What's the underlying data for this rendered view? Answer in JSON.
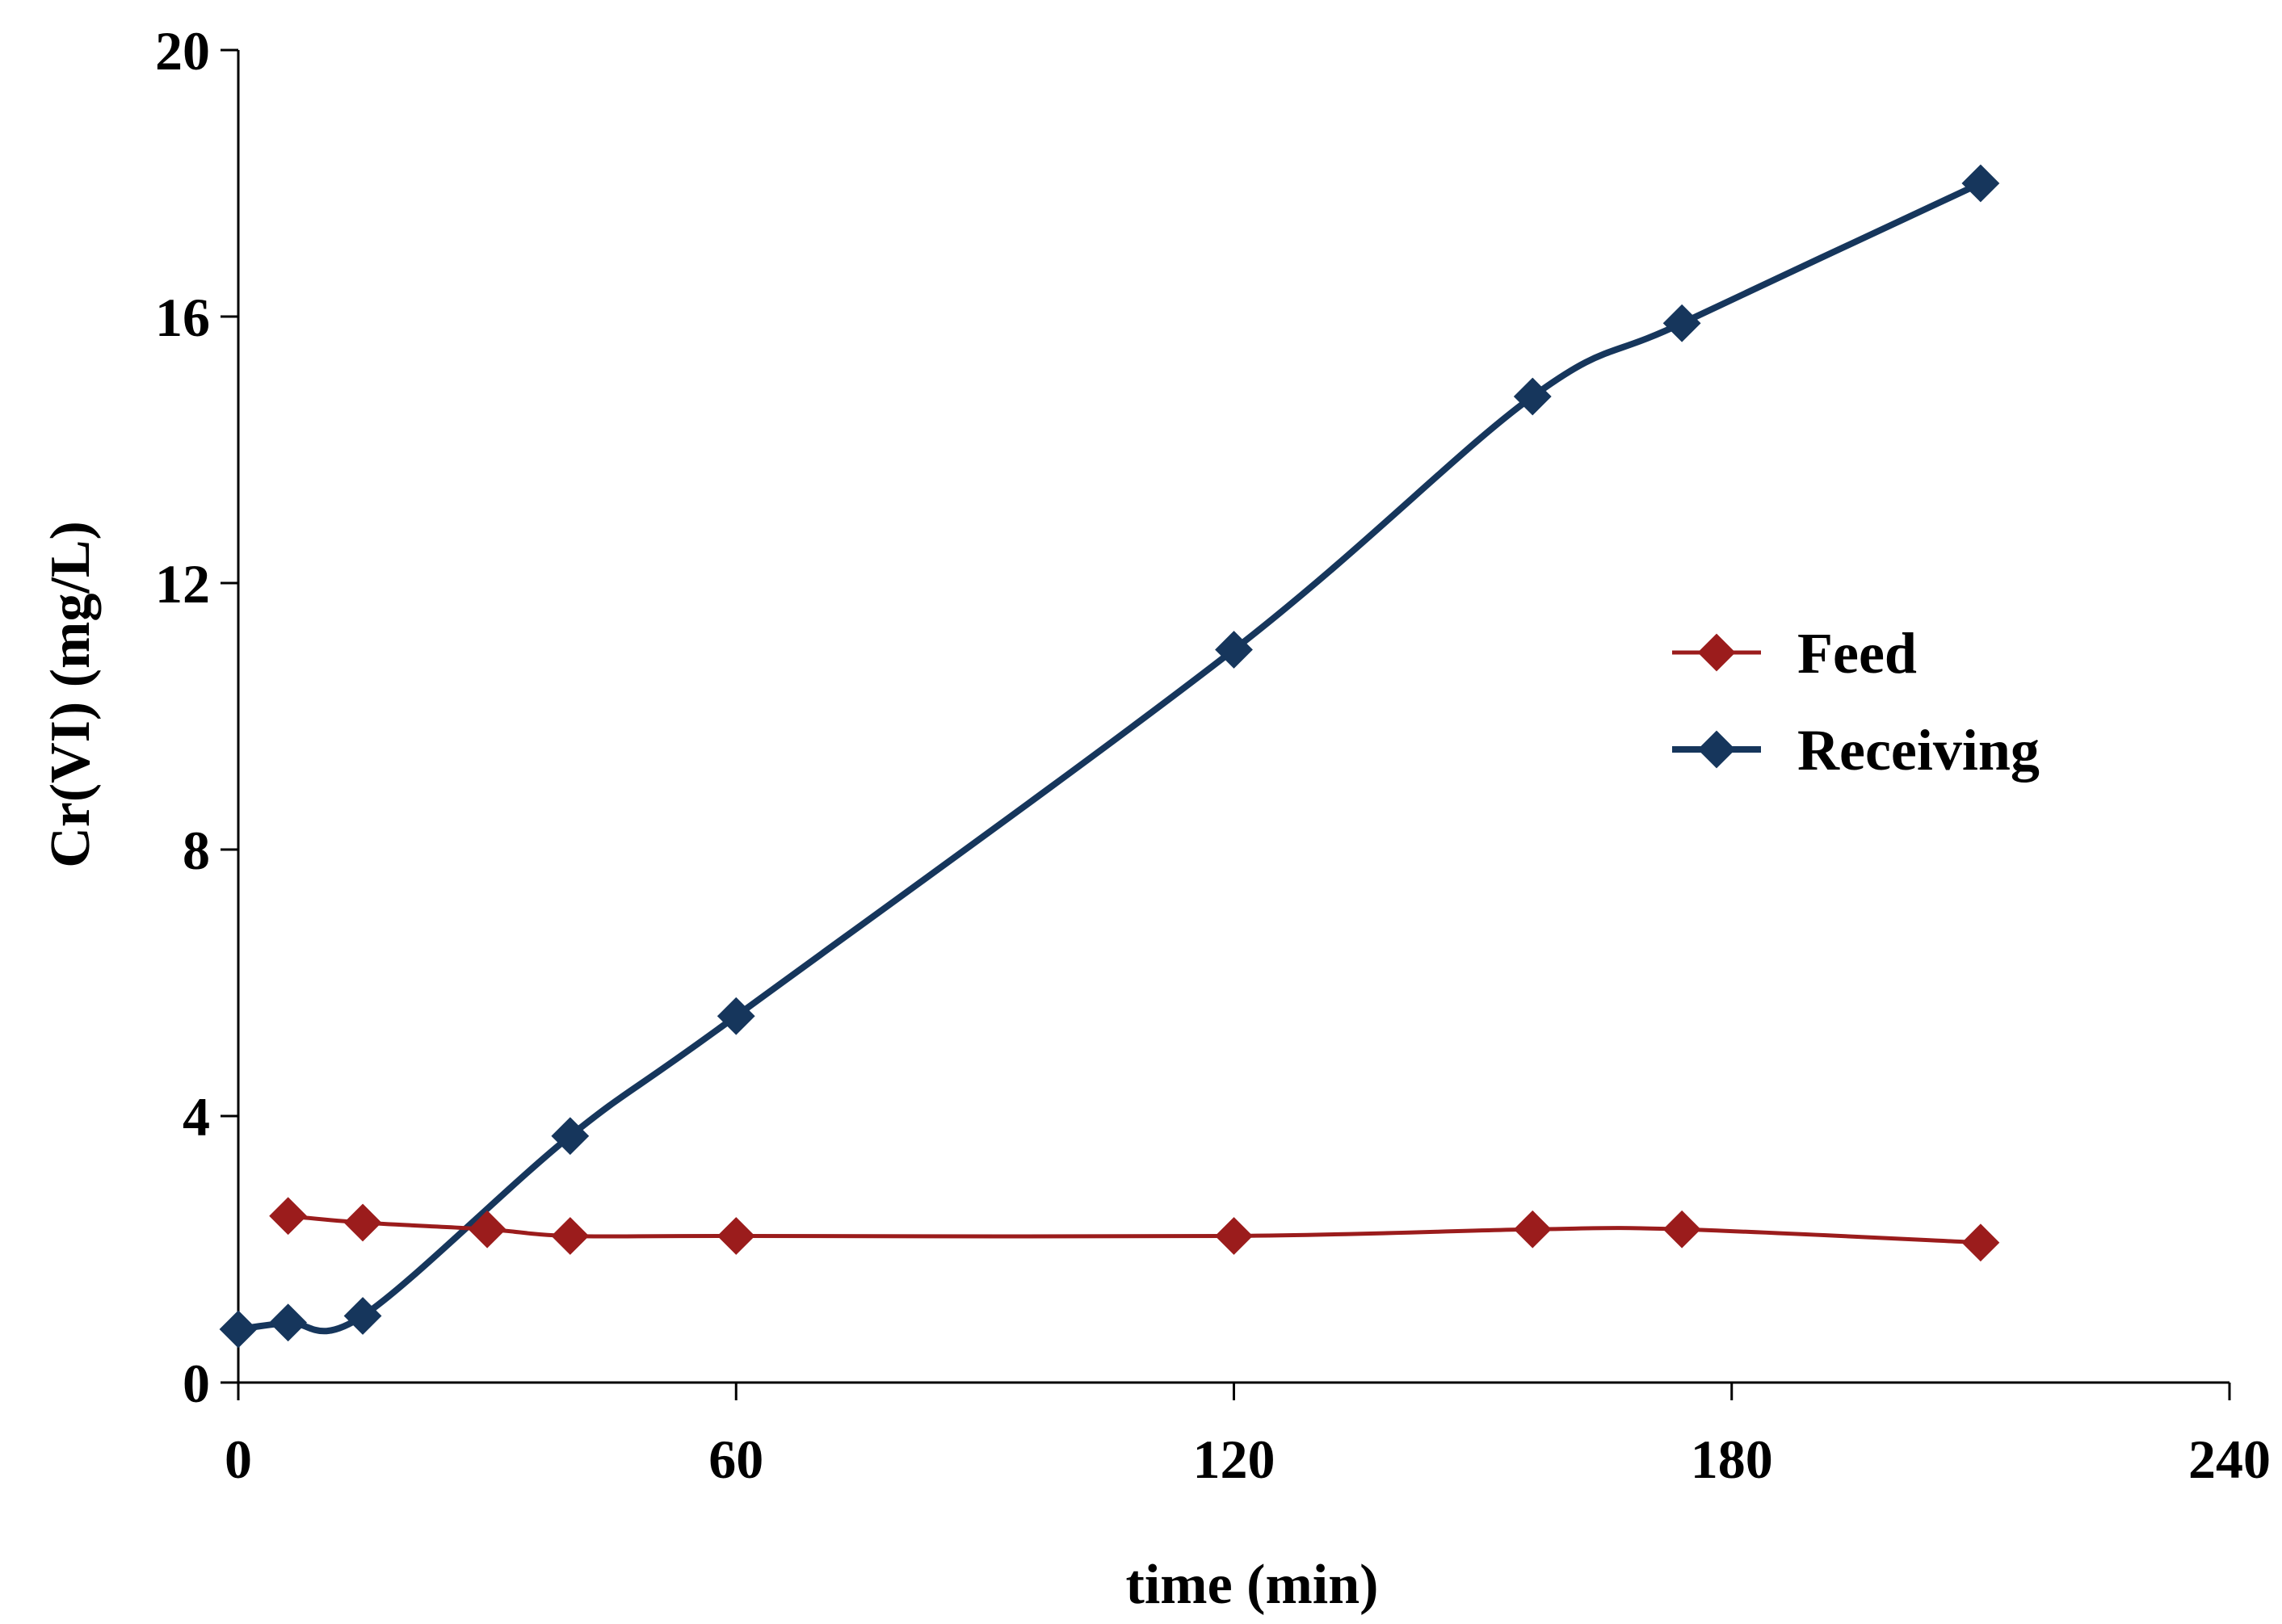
{
  "chart_data": {
    "type": "line",
    "title": "",
    "xlabel": "time (min)",
    "ylabel": "Cr(VI) (mg/L)",
    "xlim": [
      0,
      240
    ],
    "ylim": [
      0,
      20
    ],
    "xticks": [
      0,
      60,
      120,
      180,
      240
    ],
    "yticks": [
      0,
      4,
      8,
      12,
      16,
      20
    ],
    "grid": false,
    "legend_position": "right-middle",
    "series": [
      {
        "name": "Feed",
        "color": "#9b1c1c",
        "marker": "diamond",
        "points": [
          [
            6,
            2.5
          ],
          [
            15,
            2.4
          ],
          [
            30,
            2.3
          ],
          [
            40,
            2.2
          ],
          [
            60,
            2.2
          ],
          [
            120,
            2.2
          ],
          [
            156,
            2.3
          ],
          [
            174,
            2.3
          ],
          [
            210,
            2.1
          ]
        ]
      },
      {
        "name": "Receiving",
        "color": "#16365c",
        "marker": "diamond",
        "points": [
          [
            0,
            0.8
          ],
          [
            6,
            0.9
          ],
          [
            15,
            1.0
          ],
          [
            40,
            3.7
          ],
          [
            60,
            5.5
          ],
          [
            120,
            11.0
          ],
          [
            156,
            14.8
          ],
          [
            174,
            15.9
          ],
          [
            210,
            18.0
          ]
        ]
      }
    ]
  }
}
